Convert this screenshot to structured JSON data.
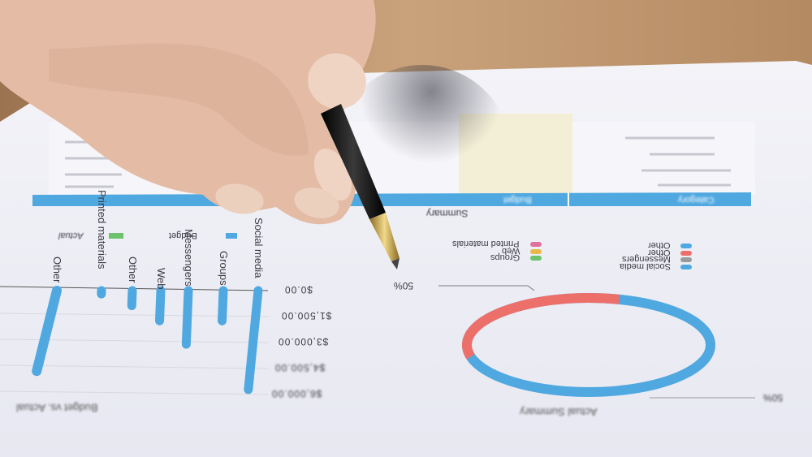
{
  "photo": {
    "colors": {
      "paper": "#eef0f6",
      "wood": "#b08a66",
      "skin": "#e8c3ae",
      "nail": "#edd2c0",
      "pen_body": "#141414",
      "pen_tip": "#c8a24a",
      "accent_blue": "#4fa8e0",
      "accent_red": "#ec6f6a",
      "legend_green": "#6cc36b"
    }
  },
  "document": {
    "table": {
      "header_left": "Budget",
      "header_right": "Category"
    },
    "summary_label": "Summary",
    "bar_chart": {
      "title": "Budget vs. Actual",
      "legend": [
        {
          "label": "Budget",
          "color": "#4fa8e0"
        },
        {
          "label": "Actual",
          "color": "#6cc36b"
        }
      ],
      "y_ticks": [
        "$0.00",
        "$1,500.00",
        "$3,000.00",
        "$4,500.00",
        "$6,000.00"
      ],
      "categories": [
        "Social media",
        "Groups",
        "Messengers",
        "Web",
        "Other",
        "Printed materials",
        "Other"
      ],
      "values": [
        5900,
        1800,
        3200,
        1800,
        900,
        200,
        4800
      ]
    },
    "donut": {
      "title": "Actual Summary",
      "label_top": "50%",
      "label_right": "50%",
      "segments": [
        {
          "label": "red",
          "value": 50,
          "color": "#ec6f6a"
        },
        {
          "label": "blue",
          "value": 50,
          "color": "#4fa8e0"
        }
      ],
      "legend_left": [
        {
          "label": "Social media",
          "color": "#4fa8e0"
        },
        {
          "label": "Messengers",
          "color": "#9a9a9a"
        },
        {
          "label": "Other",
          "color": "#ec6f6a"
        },
        {
          "label": "Other",
          "color": "#4fa8e0"
        }
      ],
      "legend_right": [
        {
          "label": "Groups",
          "color": "#6cc36b"
        },
        {
          "label": "Web",
          "color": "#e8b84a"
        },
        {
          "label": "Printed materials",
          "color": "#e070a0"
        }
      ]
    }
  }
}
